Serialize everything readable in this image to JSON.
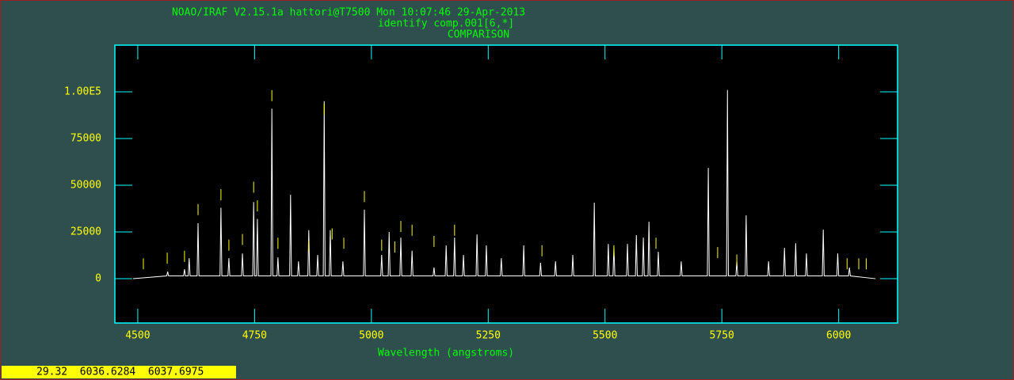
{
  "chart_data": {
    "type": "line",
    "title_lines": [
      "NOAO/IRAF V2.15.1a hattori@T7500 Mon 10:07:46 29-Apr-2013",
      "identify comp.001[6,*]",
      "COMPARISON"
    ],
    "x_label": "Wavelength (angstroms)",
    "xlim": [
      4451,
      6126
    ],
    "xticks": [
      4500,
      4750,
      5000,
      5250,
      5500,
      5750,
      6000
    ],
    "ylim": [
      -23700,
      125000
    ],
    "yticks": [
      0,
      25000,
      50000,
      75000,
      {
        "value": 100000,
        "label": "1.00E5"
      }
    ],
    "series": [
      {
        "color": "#ffffff",
        "x": [
          4490,
          4562,
          4564,
          4566,
          4598,
          4600,
          4602,
          4608,
          4610,
          4612,
          4627,
          4629,
          4631,
          4676,
          4678,
          4680,
          4693,
          4695,
          4697,
          4722,
          4724,
          4726,
          4746,
          4748,
          4750,
          4754,
          4756,
          4758,
          4785,
          4787,
          4789,
          4798,
          4800,
          4802,
          4825,
          4827,
          4829,
          4842,
          4844,
          4846,
          4864,
          4866,
          4868,
          4883,
          4885,
          4887,
          4897,
          4899,
          4901,
          4910,
          4912,
          4914,
          4937,
          4939,
          4941,
          4983,
          4985,
          4987,
          5020,
          5022,
          5024,
          5036,
          5038,
          5040,
          5061,
          5063,
          5065,
          5085,
          5087,
          5089,
          5132,
          5134,
          5136,
          5158,
          5160,
          5162,
          5176,
          5178,
          5180,
          5195,
          5197,
          5199,
          5224,
          5226,
          5228,
          5244,
          5246,
          5248,
          5276,
          5278,
          5280,
          5324,
          5326,
          5328,
          5360,
          5362,
          5364,
          5392,
          5394,
          5396,
          5429,
          5431,
          5433,
          5475,
          5477,
          5479,
          5505,
          5507,
          5509,
          5517,
          5519,
          5521,
          5546,
          5548,
          5550,
          5565,
          5567,
          5569,
          5580,
          5582,
          5584,
          5592,
          5594,
          5596,
          5612,
          5614,
          5616,
          5661,
          5663,
          5665,
          5719,
          5721,
          5723,
          5760,
          5762,
          5764,
          5780,
          5782,
          5784,
          5800,
          5802,
          5804,
          5848,
          5850,
          5852,
          5882,
          5884,
          5886,
          5906,
          5908,
          5910,
          5929,
          5931,
          5933,
          5965,
          5967,
          5969,
          5996,
          5998,
          6000,
          6021,
          6023,
          6025,
          6079
        ],
        "values": [
          0,
          1500,
          3800,
          1500,
          1500,
          5000,
          1500,
          1500,
          11000,
          1500,
          1500,
          29700,
          1500,
          1500,
          38000,
          1500,
          1500,
          11000,
          1500,
          1500,
          13500,
          1500,
          1500,
          41000,
          1500,
          1500,
          32000,
          1500,
          1500,
          91000,
          1500,
          1500,
          11400,
          1500,
          1500,
          45000,
          1500,
          1500,
          9300,
          1500,
          1500,
          26000,
          1500,
          1500,
          12700,
          1500,
          1500,
          95000,
          1500,
          1500,
          26000,
          1500,
          1500,
          9300,
          1500,
          1500,
          37000,
          1500,
          1500,
          12700,
          1500,
          1500,
          25000,
          1500,
          1500,
          22000,
          1500,
          1500,
          15000,
          1500,
          1500,
          6000,
          1500,
          1500,
          17800,
          1500,
          1500,
          22000,
          1500,
          1500,
          12700,
          1500,
          1500,
          23700,
          1500,
          1500,
          17800,
          1500,
          1500,
          11000,
          1500,
          1500,
          17800,
          1500,
          1500,
          8500,
          1500,
          1500,
          9300,
          1500,
          1500,
          12700,
          1500,
          1500,
          40700,
          1500,
          1500,
          18600,
          1500,
          1500,
          17000,
          1500,
          1500,
          18600,
          1500,
          1500,
          23300,
          1500,
          1500,
          22000,
          1500,
          1500,
          30500,
          1500,
          1500,
          14400,
          1500,
          1500,
          9300,
          1500,
          1500,
          59300,
          1500,
          1500,
          101000,
          1500,
          1500,
          9300,
          1500,
          1500,
          33900,
          1500,
          1500,
          9300,
          1500,
          1500,
          16500,
          1500,
          1500,
          19000,
          1500,
          1500,
          13500,
          1500,
          1500,
          26300,
          1500,
          1500,
          13500,
          1500,
          1500,
          6000,
          1500,
          0
        ]
      }
    ],
    "feature_marks": {
      "color": "#ffff00",
      "x": [
        4512,
        4563,
        4600,
        4629,
        4678,
        4695,
        4724,
        4748,
        4756,
        4787,
        4800,
        4866,
        4899,
        4916,
        4941,
        4985,
        5022,
        5050,
        5063,
        5087,
        5134,
        5178,
        5365,
        5519,
        5609,
        5741,
        5782,
        6018,
        6043,
        6059
      ],
      "y": [
        5000,
        8000,
        9000,
        34000,
        42000,
        15000,
        18000,
        46000,
        36000,
        95000,
        16000,
        14400,
        87700,
        21000,
        16000,
        41000,
        15000,
        14000,
        25000,
        23000,
        17000,
        23000,
        12000,
        12000,
        16000,
        11000,
        7000,
        5000,
        5000,
        5000
      ]
    }
  },
  "status_bar": "29.32  6036.6284  6037.6975"
}
